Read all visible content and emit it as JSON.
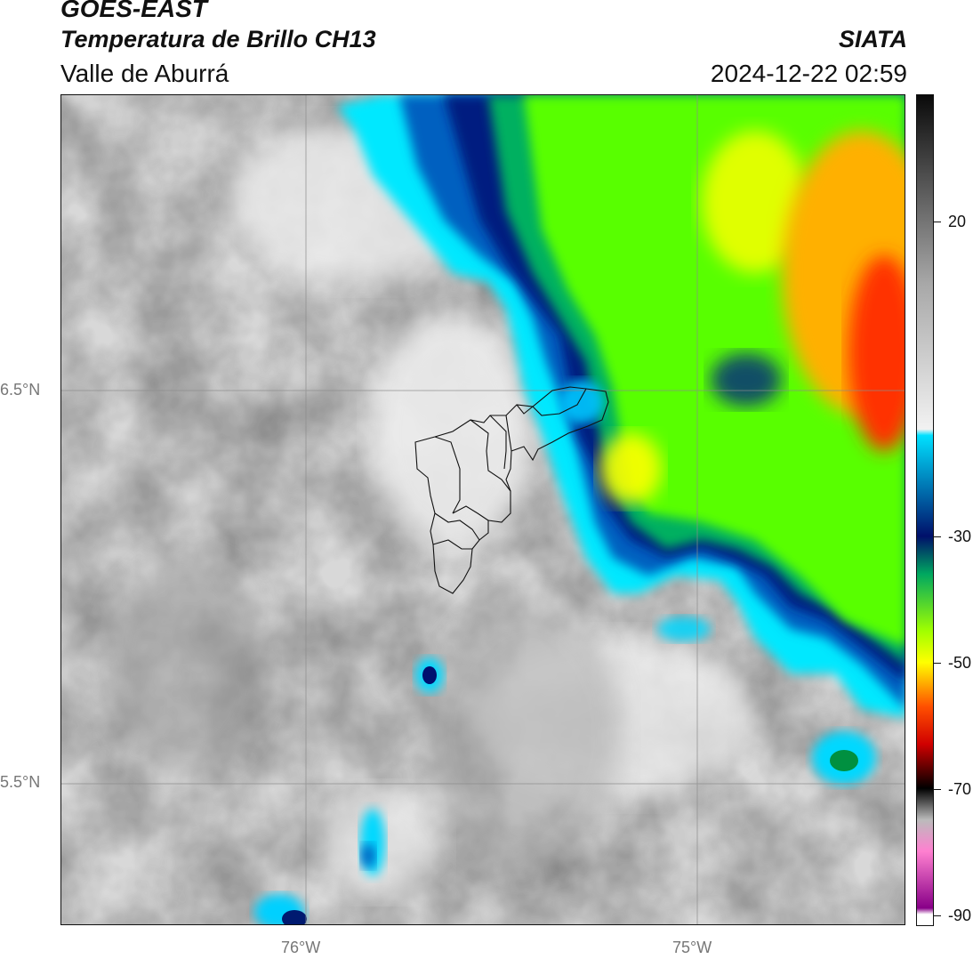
{
  "header": {
    "title": "GOES-EAST",
    "subtitle": "Temperatura de Brillo CH13",
    "region": "Valle de Aburrá",
    "organization": "SIATA",
    "datetime": "2024-12-22 02:59"
  },
  "map": {
    "lat_labels": [
      "6.5°N",
      "5.5°N"
    ],
    "lon_labels": [
      "76°W",
      "75°W"
    ]
  },
  "colorbar": {
    "ticks": [
      "20",
      "-30",
      "-50",
      "-70",
      "-90"
    ],
    "range": [
      -92,
      40
    ],
    "stops": [
      {
        "value": 40,
        "color": "#0a0a0a"
      },
      {
        "value": 25,
        "color": "#5a5a5a"
      },
      {
        "value": 10,
        "color": "#a8a8a8"
      },
      {
        "value": -13,
        "color": "#f2f2f2"
      },
      {
        "value": -14,
        "color": "#00e0ff"
      },
      {
        "value": -30,
        "color": "#00106a"
      },
      {
        "value": -36,
        "color": "#00a860"
      },
      {
        "value": -45,
        "color": "#a0ff00"
      },
      {
        "value": -50,
        "color": "#ffff00"
      },
      {
        "value": -57,
        "color": "#ff5000"
      },
      {
        "value": -63,
        "color": "#d00000"
      },
      {
        "value": -70,
        "color": "#000000"
      },
      {
        "value": -75,
        "color": "#bbbbbb"
      },
      {
        "value": -80,
        "color": "#ff80d0"
      },
      {
        "value": -89,
        "color": "#880088"
      },
      {
        "value": -90,
        "color": "#ffffff"
      }
    ]
  }
}
